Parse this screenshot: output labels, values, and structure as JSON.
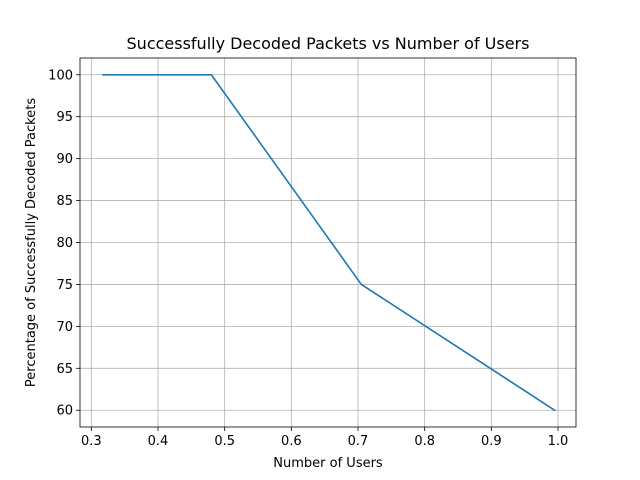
{
  "chart_data": {
    "type": "line",
    "title": "Successfully Decoded Packets vs Number of Users",
    "xlabel": "Number of Users",
    "ylabel": "Percentage of Successfully Decoded Packets",
    "xlim": [
      0.283,
      1.027
    ],
    "ylim": [
      58.0,
      102.0
    ],
    "xticks": [
      0.3,
      0.4,
      0.5,
      0.6,
      0.7,
      0.8,
      0.9,
      1.0
    ],
    "xtick_labels": [
      "0.3",
      "0.4",
      "0.5",
      "0.6",
      "0.7",
      "0.8",
      "0.9",
      "1.0"
    ],
    "yticks": [
      60,
      65,
      70,
      75,
      80,
      85,
      90,
      95,
      100
    ],
    "ytick_labels": [
      "60",
      "65",
      "70",
      "75",
      "80",
      "85",
      "90",
      "95",
      "100"
    ],
    "grid": true,
    "series": [
      {
        "color": "#1f77b4",
        "x": [
          0.42,
          0.317,
          0.48,
          0.705,
          0.995
        ],
        "y": [
          100,
          100,
          100,
          75,
          60
        ]
      }
    ]
  }
}
